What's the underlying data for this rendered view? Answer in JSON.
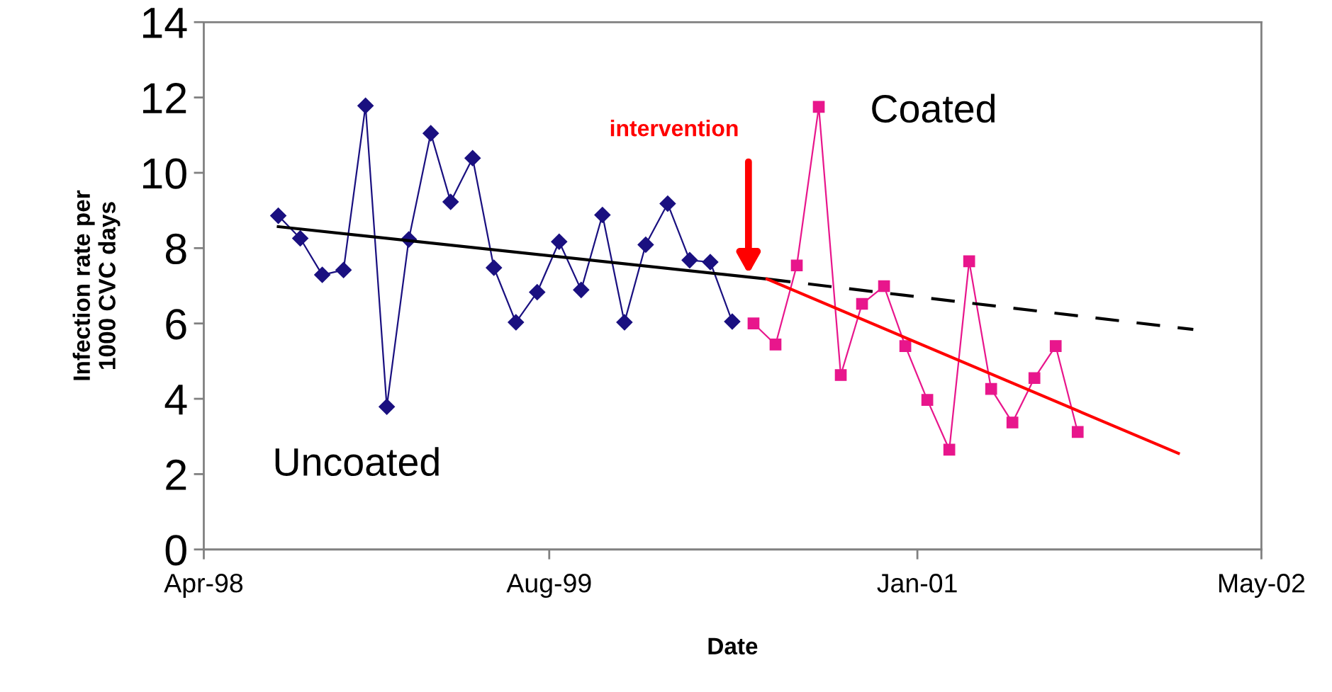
{
  "chart_data": {
    "type": "line",
    "xlabel": "Date",
    "ylabel": "Infection rate per\n1000 CVC days",
    "xlim": [
      "1998-04-01",
      "2002-05-01"
    ],
    "xticks": [
      {
        "value": "1998-04-01",
        "label": "Apr-98"
      },
      {
        "value": "1999-08-01",
        "label": "Aug-99"
      },
      {
        "value": "2001-01-01",
        "label": "Jan-01"
      },
      {
        "value": "2002-05-01",
        "label": "May-02"
      }
    ],
    "ylim": [
      0,
      14
    ],
    "yticks": [
      0,
      2,
      4,
      6,
      8,
      10,
      12,
      14
    ],
    "grid": false,
    "legend": false,
    "series": [
      {
        "name": "Uncoated",
        "color": "#1a1080",
        "marker": "diamond",
        "line_style": "solid",
        "x": [
          "1998-07-15",
          "1998-08-15",
          "1998-09-15",
          "1998-10-15",
          "1998-11-15",
          "1998-12-15",
          "1999-01-15",
          "1999-02-15",
          "1999-03-15",
          "1999-04-15",
          "1999-05-15",
          "1999-06-15",
          "1999-07-15",
          "1999-08-15",
          "1999-09-15",
          "1999-10-15",
          "1999-11-15",
          "1999-12-15",
          "2000-01-15",
          "2000-02-15",
          "2000-03-15",
          "2000-04-15"
        ],
        "values": [
          8.86,
          8.26,
          7.29,
          7.42,
          11.78,
          3.79,
          8.23,
          11.05,
          9.23,
          10.39,
          7.48,
          6.03,
          6.83,
          8.17,
          6.89,
          8.88,
          6.03,
          8.09,
          9.18,
          7.68,
          7.63,
          6.05
        ]
      },
      {
        "name": "Coated",
        "color": "#e8168c",
        "marker": "square",
        "line_style": "solid",
        "x": [
          "2000-05-15",
          "2000-06-15",
          "2000-07-15",
          "2000-08-15",
          "2000-09-15",
          "2000-10-15",
          "2000-11-15",
          "2000-12-15",
          "2001-01-15",
          "2001-02-15",
          "2001-03-15",
          "2001-04-15",
          "2001-05-15",
          "2001-06-15",
          "2001-07-15",
          "2001-08-15"
        ],
        "values": [
          6.0,
          5.44,
          7.54,
          11.75,
          4.63,
          6.52,
          6.99,
          5.4,
          3.97,
          2.65,
          7.65,
          4.26,
          3.37,
          4.55,
          5.4,
          3.12
        ]
      },
      {
        "color": "#000000",
        "marker": "none",
        "line_style": "solid",
        "x": [
          "1998-07-15",
          "2000-06-03"
        ],
        "values": [
          8.57,
          7.18
        ]
      },
      {
        "color": "#000000",
        "marker": "none",
        "line_style": "dashed",
        "x": [
          "2000-06-03",
          "2002-01-25"
        ],
        "values": [
          7.18,
          5.84
        ]
      },
      {
        "color": "#ff0000",
        "marker": "none",
        "line_style": "solid",
        "x": [
          "2000-06-03",
          "2002-01-04"
        ],
        "values": [
          7.18,
          2.55
        ]
      }
    ],
    "annotations": [
      "intervention"
    ]
  }
}
